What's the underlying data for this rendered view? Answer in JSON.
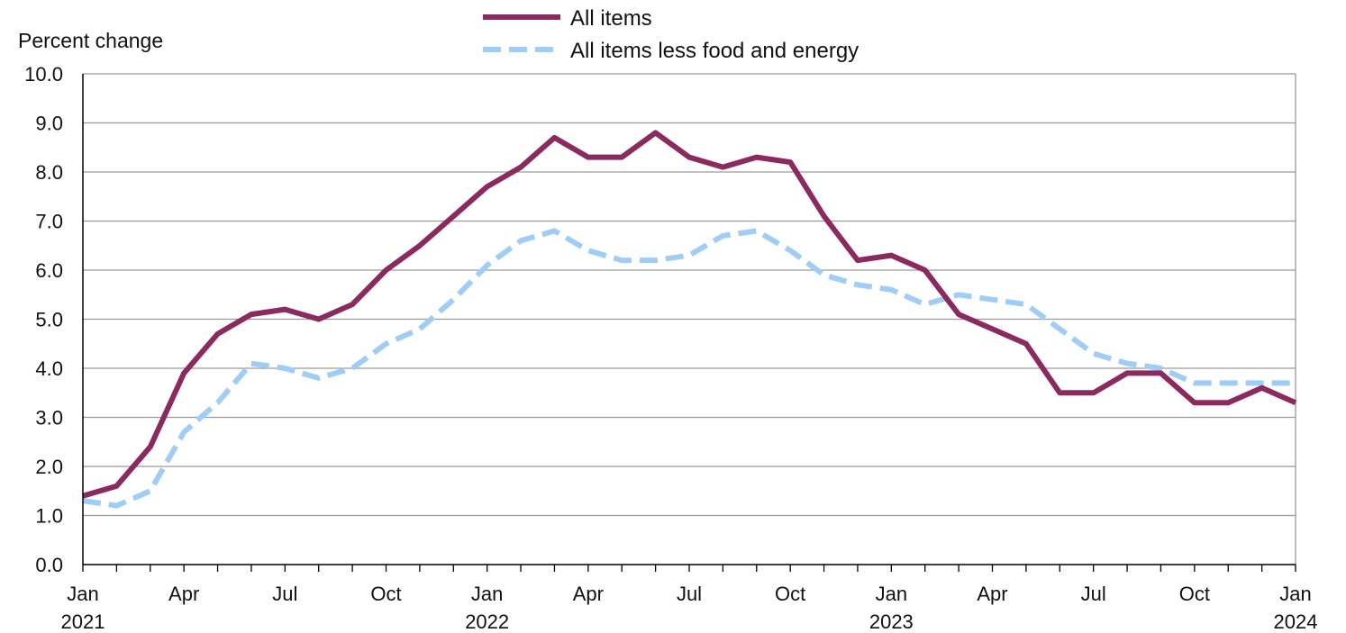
{
  "chart_data": {
    "type": "line",
    "title": "",
    "xlabel": "",
    "ylabel": "Percent change",
    "ylim": [
      0,
      10
    ],
    "y_ticks": [
      "0.0",
      "1.0",
      "2.0",
      "3.0",
      "4.0",
      "5.0",
      "6.0",
      "7.0",
      "8.0",
      "9.0",
      "10.0"
    ],
    "grid": "horizontal",
    "legend_position": "top-center",
    "x_months": [
      "Jan 2021",
      "Feb 2021",
      "Mar 2021",
      "Apr 2021",
      "May 2021",
      "Jun 2021",
      "Jul 2021",
      "Aug 2021",
      "Sep 2021",
      "Oct 2021",
      "Nov 2021",
      "Dec 2021",
      "Jan 2022",
      "Feb 2022",
      "Mar 2022",
      "Apr 2022",
      "May 2022",
      "Jun 2022",
      "Jul 2022",
      "Aug 2022",
      "Sep 2022",
      "Oct 2022",
      "Nov 2022",
      "Dec 2022",
      "Jan 2023",
      "Feb 2023",
      "Mar 2023",
      "Apr 2023",
      "May 2023",
      "Jun 2023",
      "Jul 2023",
      "Aug 2023",
      "Sep 2023",
      "Oct 2023",
      "Nov 2023",
      "Dec 2023",
      "Jan 2024"
    ],
    "x_tick_labels": [
      {
        "month": "Jan",
        "year": "2021"
      },
      {
        "month": "Apr",
        "year": ""
      },
      {
        "month": "Jul",
        "year": ""
      },
      {
        "month": "Oct",
        "year": ""
      },
      {
        "month": "Jan",
        "year": "2022"
      },
      {
        "month": "Apr",
        "year": ""
      },
      {
        "month": "Jul",
        "year": ""
      },
      {
        "month": "Oct",
        "year": ""
      },
      {
        "month": "Jan",
        "year": "2023"
      },
      {
        "month": "Apr",
        "year": ""
      },
      {
        "month": "Jul",
        "year": ""
      },
      {
        "month": "Oct",
        "year": ""
      },
      {
        "month": "Jan",
        "year": "2024"
      }
    ],
    "series": [
      {
        "name": "All items",
        "color": "#8b2a5e",
        "style": "solid",
        "values": [
          1.4,
          1.6,
          2.4,
          3.9,
          4.7,
          5.1,
          5.2,
          5.0,
          5.3,
          6.0,
          6.5,
          7.1,
          7.7,
          8.1,
          8.7,
          8.3,
          8.3,
          8.8,
          8.3,
          8.1,
          8.3,
          8.2,
          7.1,
          6.2,
          6.3,
          6.0,
          5.1,
          4.8,
          4.5,
          3.5,
          3.5,
          3.9,
          3.9,
          3.3,
          3.3,
          3.6,
          3.3
        ]
      },
      {
        "name": "All items less food and energy",
        "color": "#9fcdf5",
        "style": "dashed",
        "values": [
          1.3,
          1.2,
          1.5,
          2.7,
          3.3,
          4.1,
          4.0,
          3.8,
          4.0,
          4.5,
          4.8,
          5.4,
          6.1,
          6.6,
          6.8,
          6.4,
          6.2,
          6.2,
          6.3,
          6.7,
          6.8,
          6.4,
          5.9,
          5.7,
          5.6,
          5.3,
          5.5,
          5.4,
          5.3,
          4.8,
          4.3,
          4.1,
          4.0,
          3.7,
          3.7,
          3.7,
          3.7
        ]
      }
    ]
  }
}
